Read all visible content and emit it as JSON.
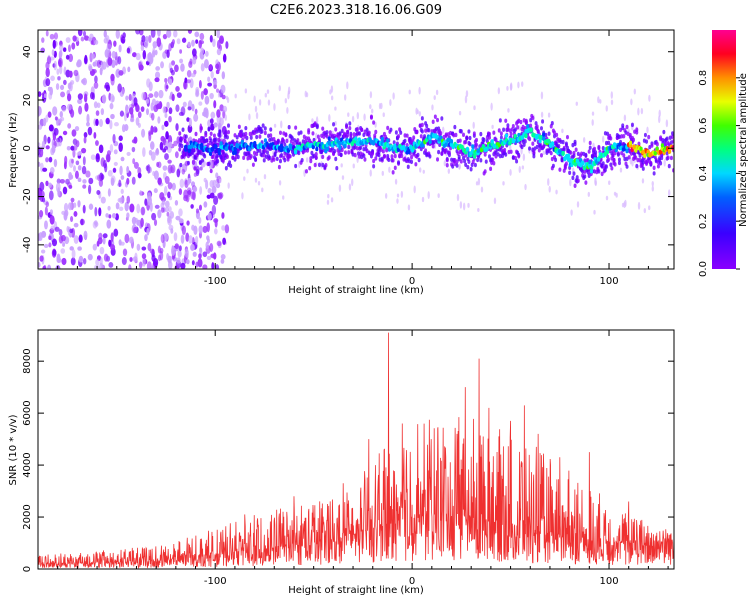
{
  "title": "C2E6.2023.318.16.06.G09",
  "colors": {
    "snr_line": "#ef3030",
    "frame": "#000000",
    "spectro_low": "#8a00ff",
    "spectro_high": "#ff0000"
  },
  "chart_data": [
    {
      "type": "heatmap",
      "name": "spectrogram",
      "xlabel": "Height of straight line (km)",
      "ylabel": "Frequency (Hz)",
      "xlim": [
        -190,
        133
      ],
      "ylim": [
        -50,
        49
      ],
      "x_ticks": [
        -100,
        0,
        100
      ],
      "y_ticks": [
        -40,
        -20,
        0,
        20,
        40
      ],
      "colorbar": {
        "label": "Normalized spectral amplitude",
        "range": [
          0.0,
          1.0
        ],
        "ticks": [
          "0.0",
          "0.2",
          "0.4",
          "0.6",
          "0.8"
        ],
        "colormap": "rainbow (violet → blue → cyan → green → yellow → red → magenta)"
      },
      "trace": {
        "description_points_x": [
          -115,
          -100,
          -80,
          -60,
          -40,
          -20,
          -10,
          0,
          10,
          20,
          30,
          40,
          50,
          60,
          70,
          80,
          90,
          100,
          110,
          120,
          133
        ],
        "frequency_hz": [
          1,
          0,
          1,
          0,
          2,
          3,
          0,
          0,
          5,
          2,
          -2,
          1,
          3,
          7,
          2,
          -5,
          -8,
          0,
          1,
          -2,
          0
        ]
      },
      "noise_region_x": [
        -190,
        -100
      ]
    },
    {
      "type": "line",
      "name": "snr",
      "xlabel": "Height of straight line (km)",
      "ylabel": "SNR (10 * v/v)",
      "xlim": [
        -190,
        133
      ],
      "ylim": [
        0,
        9200
      ],
      "x_ticks": [
        -100,
        0,
        100
      ],
      "y_ticks": [
        0,
        2000,
        4000,
        6000,
        8000
      ],
      "envelope": {
        "x": [
          -190,
          -160,
          -130,
          -110,
          -90,
          -70,
          -50,
          -30,
          -15,
          0,
          15,
          30,
          45,
          60,
          75,
          90,
          105,
          120,
          133
        ],
        "upper": [
          600,
          700,
          900,
          1300,
          1900,
          2300,
          2700,
          3300,
          4600,
          5800,
          5800,
          5900,
          5400,
          4900,
          4100,
          3300,
          2400,
          1800,
          1500
        ],
        "base": [
          200,
          250,
          300,
          450,
          650,
          800,
          1000,
          1300,
          1700,
          2000,
          2000,
          1900,
          1700,
          1500,
          1300,
          1100,
          1000,
          1000,
          1000
        ]
      },
      "peaks": [
        {
          "x": -12,
          "y": 9100
        },
        {
          "x": 34,
          "y": 8100
        },
        {
          "x": 27,
          "y": 7000
        },
        {
          "x": 57,
          "y": 6300
        },
        {
          "x": 39,
          "y": 6200
        },
        {
          "x": -5,
          "y": 5600
        },
        {
          "x": 13,
          "y": 5400
        },
        {
          "x": 50,
          "y": 5700
        },
        {
          "x": 64,
          "y": 5200
        },
        {
          "x": -22,
          "y": 5000
        },
        {
          "x": 90,
          "y": 4500
        },
        {
          "x": 75,
          "y": 4300
        },
        {
          "x": -35,
          "y": 3300
        },
        {
          "x": -60,
          "y": 2800
        },
        {
          "x": -85,
          "y": 2100
        },
        {
          "x": 110,
          "y": 2600
        }
      ]
    }
  ]
}
